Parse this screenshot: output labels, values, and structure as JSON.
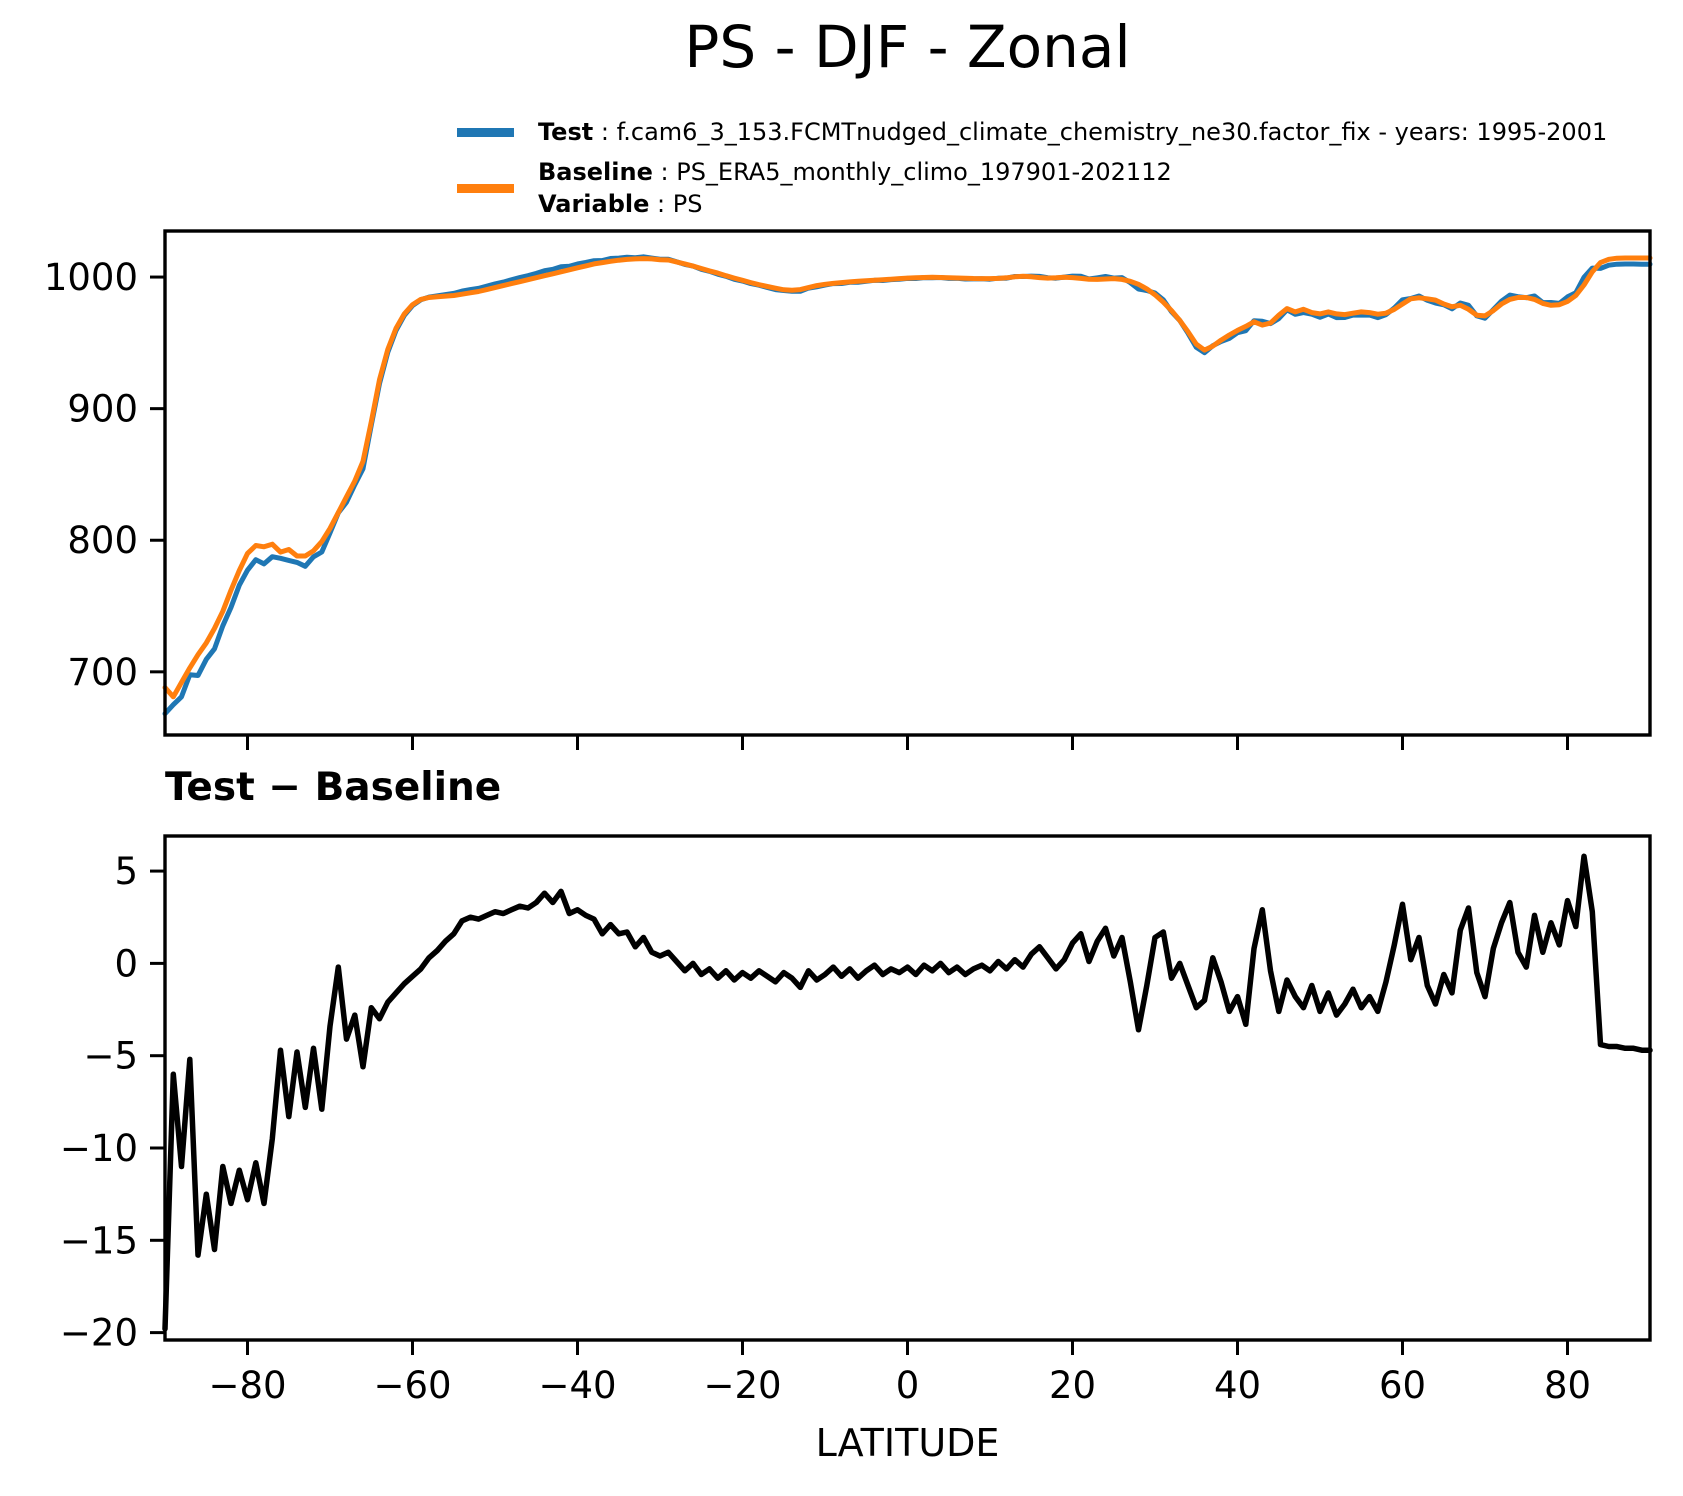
{
  "title": "PS - DJF - Zonal",
  "legend": {
    "entries": [
      {
        "label": "Test",
        "separator": " : ",
        "value": "f.cam6_3_153.FCMTnudged_climate_chemistry_ne30.factor_fix - years: 1995-2001",
        "color": "#1f77b4"
      },
      {
        "label": "Baseline",
        "separator": " : ",
        "value": "PS_ERA5_monthly_climo_197901-202112",
        "color": "#ff7f0e"
      },
      {
        "label": "Variable",
        "separator": " : ",
        "value": "PS"
      }
    ]
  },
  "panel2_title": "Test − Baseline",
  "xlabel": "LATITUDE",
  "colors": {
    "test": "#1f77b4",
    "baseline": "#ff7f0e",
    "diff": "#000000",
    "axes": "#000000"
  },
  "chart_data": [
    {
      "type": "line",
      "panel": "top",
      "title": "PS - DJF - Zonal",
      "xlabel": "",
      "ylabel": "",
      "xlim": [
        -90,
        90
      ],
      "ylim": [
        652,
        1035
      ],
      "grid": false,
      "legend_position": "above-top-center",
      "xticks": [
        -80,
        -60,
        -40,
        -20,
        0,
        20,
        40,
        60,
        80
      ],
      "xtick_labels": [],
      "show_xtick_labels": false,
      "yticks": [
        1000,
        900,
        800,
        700
      ],
      "ytick_labels": [
        "1000",
        "900",
        "800",
        "700"
      ],
      "x": [
        -90,
        -89,
        -88,
        -87,
        -86,
        -85,
        -84,
        -83,
        -82,
        -81,
        -80,
        -79,
        -78,
        -77,
        -76,
        -75,
        -74,
        -73,
        -72,
        -71,
        -70,
        -69,
        -68,
        -67,
        -66,
        -65,
        -64,
        -63,
        -62,
        -61,
        -60,
        -59,
        -58,
        -57,
        -56,
        -55,
        -54,
        -53,
        -52,
        -51,
        -50,
        -49,
        -48,
        -47,
        -46,
        -45,
        -44,
        -43,
        -42,
        -41,
        -40,
        -39,
        -38,
        -37,
        -36,
        -35,
        -34,
        -33,
        -32,
        -31,
        -30,
        -29,
        -28,
        -27,
        -26,
        -25,
        -24,
        -23,
        -22,
        -21,
        -20,
        -19,
        -18,
        -17,
        -16,
        -15,
        -14,
        -13,
        -12,
        -11,
        -10,
        -9,
        -8,
        -7,
        -6,
        -5,
        -4,
        -3,
        -2,
        -1,
        0,
        1,
        2,
        3,
        4,
        5,
        6,
        7,
        8,
        9,
        10,
        11,
        12,
        13,
        14,
        15,
        16,
        17,
        18,
        19,
        20,
        21,
        22,
        23,
        24,
        25,
        26,
        27,
        28,
        29,
        30,
        31,
        32,
        33,
        34,
        35,
        36,
        37,
        38,
        39,
        40,
        41,
        42,
        43,
        44,
        45,
        46,
        47,
        48,
        49,
        50,
        51,
        52,
        53,
        54,
        55,
        56,
        57,
        58,
        59,
        60,
        61,
        62,
        63,
        64,
        65,
        66,
        67,
        68,
        69,
        70,
        71,
        72,
        73,
        74,
        75,
        76,
        77,
        78,
        79,
        80,
        81,
        82,
        83,
        84,
        85,
        86,
        87,
        88,
        89,
        90
      ],
      "series": [
        {
          "name": "Test",
          "color": "#1f77b4",
          "line_width": 5,
          "derived": "baseline_plus_diff",
          "note": "Test values equal Baseline values plus the Test−Baseline diff series of the bottom panel"
        },
        {
          "name": "Baseline",
          "color": "#ff7f0e",
          "line_width": 5,
          "values": [
            688,
            681,
            692,
            703,
            713,
            722,
            733,
            746,
            762,
            777,
            790,
            796,
            795,
            797,
            791,
            793,
            788,
            788,
            792,
            799,
            809,
            821,
            833,
            845,
            860,
            890,
            922,
            945,
            961,
            972,
            979,
            983,
            984.5,
            985,
            985.5,
            986,
            987,
            988,
            989,
            990.5,
            992,
            993.5,
            995,
            996.5,
            998,
            999.5,
            1001,
            1002.5,
            1004,
            1005.5,
            1007,
            1008.5,
            1010,
            1011,
            1012,
            1012.8,
            1013.4,
            1013.8,
            1014,
            1013.8,
            1013.2,
            1013,
            1011.5,
            1010,
            1008.3,
            1006.5,
            1004.7,
            1003,
            1001,
            999.2,
            997.5,
            995.8,
            994.2,
            992.8,
            991.5,
            990.3,
            990,
            990.5,
            992,
            993.5,
            994.5,
            995.2,
            995.8,
            996.3,
            996.8,
            997.2,
            997.6,
            998,
            998.4,
            998.8,
            999.2,
            999.5,
            999.7,
            999.8,
            999.7,
            999.5,
            999.3,
            999.1,
            998.9,
            998.8,
            998.8,
            999,
            999.4,
            1000.2,
            1000.6,
            1000.2,
            999.6,
            999.2,
            999.4,
            999.8,
            999.6,
            999,
            998.4,
            998.2,
            998.5,
            998.8,
            998.2,
            996.8,
            994.5,
            991,
            986.5,
            981,
            974.5,
            967,
            958.5,
            949,
            944.5,
            947.5,
            952,
            956,
            959.5,
            962.5,
            966,
            963.5,
            965,
            971,
            976,
            973.5,
            975.5,
            973,
            972,
            973.5,
            972,
            971.5,
            972.5,
            973.5,
            973,
            971.8,
            972.5,
            975.5,
            979.5,
            983.5,
            984.2,
            983.5,
            982.5,
            979.5,
            977.5,
            978.5,
            975.5,
            971,
            970.5,
            974.5,
            979.5,
            983,
            984.5,
            984.5,
            983,
            980,
            978.5,
            979,
            981.5,
            986,
            994,
            1004,
            1011,
            1013.5,
            1014.3,
            1014.5,
            1014.5,
            1014.5,
            1014.5
          ]
        }
      ]
    },
    {
      "type": "line",
      "panel": "bottom",
      "title": "Test − Baseline",
      "xlabel": "LATITUDE",
      "ylabel": "",
      "xlim": [
        -90,
        90
      ],
      "ylim": [
        -20.4,
        6.9
      ],
      "grid": false,
      "xticks": [
        -80,
        -60,
        -40,
        -20,
        0,
        20,
        40,
        60,
        80
      ],
      "xtick_labels": [
        "−80",
        "−60",
        "−40",
        "−20",
        "0",
        "20",
        "40",
        "60",
        "80"
      ],
      "show_xtick_labels": true,
      "yticks": [
        5,
        0,
        -5,
        -10,
        -15,
        -20
      ],
      "ytick_labels": [
        "5",
        "0",
        "−5",
        "−10",
        "−15",
        "−20"
      ],
      "x_same_as_top_panel": true,
      "series": [
        {
          "name": "Test − Baseline",
          "color": "#000000",
          "line_width": 5.5,
          "values": [
            -19.8,
            -6,
            -11,
            -5.2,
            -15.8,
            -12.5,
            -15.5,
            -11,
            -13,
            -11.2,
            -12.8,
            -10.8,
            -13,
            -9.5,
            -4.7,
            -8.3,
            -4.8,
            -7.8,
            -4.6,
            -7.9,
            -3.4,
            -0.2,
            -4.1,
            -2.8,
            -5.6,
            -2.4,
            -3,
            -2.1,
            -1.6,
            -1.1,
            -0.7,
            -0.3,
            0.3,
            0.7,
            1.2,
            1.6,
            2.3,
            2.5,
            2.4,
            2.6,
            2.8,
            2.7,
            2.9,
            3.1,
            3,
            3.3,
            3.8,
            3.3,
            3.9,
            2.7,
            2.9,
            2.6,
            2.4,
            1.6,
            2.1,
            1.6,
            1.7,
            0.9,
            1.4,
            0.6,
            0.4,
            0.6,
            0.1,
            -0.4,
            0,
            -0.6,
            -0.3,
            -0.8,
            -0.4,
            -0.9,
            -0.5,
            -0.8,
            -0.4,
            -0.7,
            -1,
            -0.5,
            -0.8,
            -1.3,
            -0.4,
            -0.9,
            -0.6,
            -0.2,
            -0.7,
            -0.3,
            -0.8,
            -0.4,
            -0.1,
            -0.6,
            -0.3,
            -0.5,
            -0.2,
            -0.6,
            -0.1,
            -0.4,
            0,
            -0.5,
            -0.2,
            -0.6,
            -0.3,
            -0.1,
            -0.4,
            0.1,
            -0.3,
            0.2,
            -0.2,
            0.5,
            0.9,
            0.3,
            -0.3,
            0.2,
            1.1,
            1.6,
            0.1,
            1.2,
            1.9,
            0.4,
            1.4,
            -1,
            -3.6,
            -1.2,
            1.4,
            1.7,
            -0.8,
            0,
            -1.2,
            -2.4,
            -2,
            0.3,
            -1,
            -2.6,
            -1.8,
            -3.3,
            0.8,
            2.9,
            -0.4,
            -2.6,
            -0.9,
            -1.8,
            -2.4,
            -1.2,
            -2.6,
            -1.6,
            -2.8,
            -2.2,
            -1.4,
            -2.4,
            -1.8,
            -2.6,
            -1,
            1,
            3.2,
            0.2,
            1.4,
            -1.2,
            -2.2,
            -0.6,
            -1.6,
            1.8,
            3,
            -0.5,
            -1.8,
            0.8,
            2.2,
            3.3,
            0.6,
            -0.2,
            2.6,
            0.6,
            2.2,
            1,
            3.4,
            2,
            5.8,
            2.8,
            -4.4,
            -4.5,
            -4.5,
            -4.6,
            -4.6,
            -4.7,
            -4.7
          ]
        }
      ]
    }
  ]
}
